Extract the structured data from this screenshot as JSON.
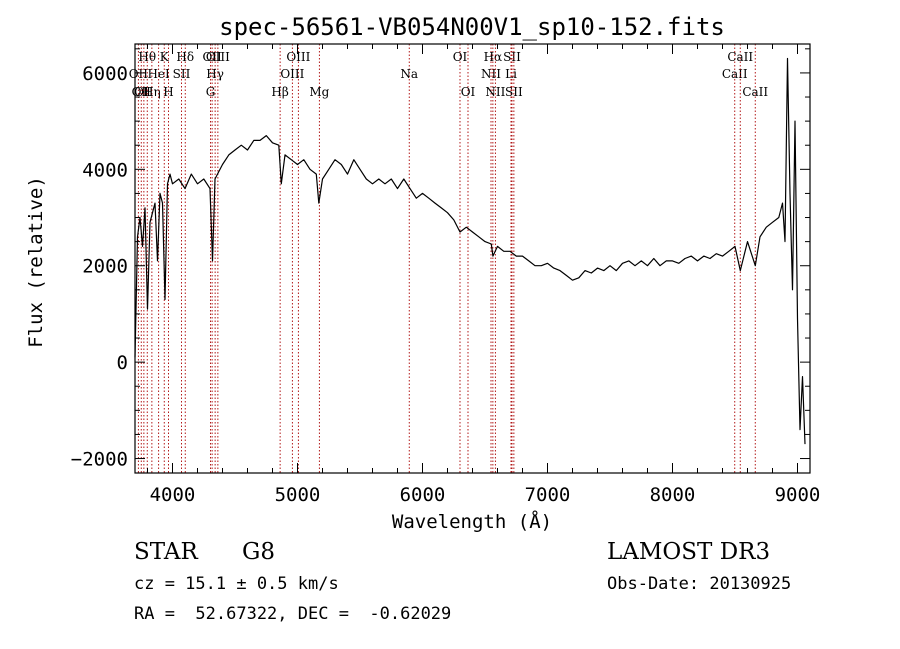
{
  "chart_data": {
    "type": "line",
    "title": "spec-56561-VB054N00V1_sp10-152.fits",
    "xlabel": "Wavelength (Å)",
    "ylabel": "Flux (relative)",
    "xlim": [
      3700,
      9100
    ],
    "ylim": [
      -2300,
      6600
    ],
    "x_ticks": [
      4000,
      5000,
      6000,
      7000,
      8000,
      9000
    ],
    "y_ticks": [
      -2000,
      0,
      2000,
      4000,
      6000
    ],
    "x_minor_step": 200,
    "y_minor_step": 500,
    "line_color": "#000000",
    "marker_color": "#aa0000",
    "series": [
      {
        "name": "flux",
        "x": [
          3700,
          3720,
          3740,
          3760,
          3780,
          3800,
          3820,
          3840,
          3860,
          3880,
          3900,
          3920,
          3940,
          3960,
          3980,
          4000,
          4050,
          4100,
          4150,
          4200,
          4250,
          4300,
          4320,
          4340,
          4360,
          4400,
          4450,
          4500,
          4550,
          4600,
          4650,
          4700,
          4750,
          4800,
          4850,
          4870,
          4900,
          4950,
          5000,
          5050,
          5100,
          5150,
          5170,
          5200,
          5250,
          5300,
          5350,
          5400,
          5450,
          5500,
          5550,
          5600,
          5650,
          5700,
          5750,
          5800,
          5850,
          5900,
          5950,
          6000,
          6050,
          6100,
          6150,
          6200,
          6250,
          6300,
          6350,
          6400,
          6450,
          6500,
          6550,
          6563,
          6600,
          6650,
          6700,
          6750,
          6800,
          6850,
          6900,
          6950,
          7000,
          7050,
          7100,
          7150,
          7200,
          7250,
          7300,
          7350,
          7400,
          7450,
          7500,
          7550,
          7600,
          7650,
          7700,
          7750,
          7800,
          7850,
          7900,
          7950,
          8000,
          8050,
          8100,
          8150,
          8200,
          8250,
          8300,
          8350,
          8400,
          8450,
          8500,
          8542,
          8600,
          8662,
          8700,
          8750,
          8800,
          8850,
          8880,
          8900,
          8920,
          8940,
          8960,
          8980,
          9000,
          9020,
          9040,
          9060
        ],
        "y": [
          100,
          2600,
          3000,
          2400,
          3200,
          1100,
          2900,
          3100,
          3300,
          2100,
          3500,
          3300,
          1300,
          3700,
          3900,
          3700,
          3800,
          3600,
          3900,
          3700,
          3800,
          3600,
          2100,
          3800,
          3900,
          4100,
          4300,
          4400,
          4500,
          4400,
          4600,
          4600,
          4700,
          4550,
          4500,
          3700,
          4300,
          4200,
          4100,
          4200,
          4000,
          3900,
          3300,
          3800,
          4000,
          4200,
          4100,
          3900,
          4200,
          4000,
          3800,
          3700,
          3800,
          3700,
          3800,
          3600,
          3800,
          3600,
          3400,
          3500,
          3400,
          3300,
          3200,
          3100,
          2950,
          2700,
          2800,
          2700,
          2600,
          2500,
          2450,
          2200,
          2400,
          2300,
          2300,
          2200,
          2200,
          2100,
          2000,
          2000,
          2050,
          1950,
          1900,
          1800,
          1700,
          1750,
          1900,
          1850,
          1950,
          1900,
          2000,
          1900,
          2050,
          2100,
          2000,
          2100,
          2000,
          2150,
          2000,
          2100,
          2100,
          2050,
          2150,
          2200,
          2100,
          2200,
          2150,
          2250,
          2200,
          2300,
          2400,
          1900,
          2500,
          2000,
          2600,
          2800,
          2900,
          3000,
          3300,
          2500,
          6300,
          3500,
          1500,
          5000,
          900,
          -1400,
          -300,
          -1700
        ]
      }
    ],
    "line_markers": [
      {
        "wavelength": 3727,
        "label": "OII",
        "row": 1
      },
      {
        "wavelength": 3750,
        "label": "OII",
        "row": 2
      },
      {
        "wavelength": 3771,
        "label": "OII",
        "row": 2
      },
      {
        "wavelength": 3798,
        "label": "Hθ",
        "row": 0
      },
      {
        "wavelength": 3835,
        "label": "Hη",
        "row": 2
      },
      {
        "wavelength": 3889,
        "label": "HeI",
        "row": 1
      },
      {
        "wavelength": 3934,
        "label": "K",
        "row": 0
      },
      {
        "wavelength": 3968,
        "label": "H",
        "row": 2
      },
      {
        "wavelength": 4072,
        "label": "SII",
        "row": 1
      },
      {
        "wavelength": 4102,
        "label": "Hδ",
        "row": 0
      },
      {
        "wavelength": 4304,
        "label": "G",
        "row": 2
      },
      {
        "wavelength": 4317,
        "label": "OII",
        "row": 0
      },
      {
        "wavelength": 4341,
        "label": "Hγ",
        "row": 1
      },
      {
        "wavelength": 4363,
        "label": "OIII",
        "row": 0
      },
      {
        "wavelength": 4861,
        "label": "Hβ",
        "row": 2
      },
      {
        "wavelength": 4959,
        "label": "OIII",
        "row": 1
      },
      {
        "wavelength": 5007,
        "label": "OIII",
        "row": 0
      },
      {
        "wavelength": 5175,
        "label": "Mg",
        "row": 2
      },
      {
        "wavelength": 5894,
        "label": "Na",
        "row": 1
      },
      {
        "wavelength": 6300,
        "label": "OI",
        "row": 0
      },
      {
        "wavelength": 6364,
        "label": "OI",
        "row": 2
      },
      {
        "wavelength": 6548,
        "label": "NII",
        "row": 1
      },
      {
        "wavelength": 6563,
        "label": "Hα",
        "row": 0
      },
      {
        "wavelength": 6583,
        "label": "NII",
        "row": 2
      },
      {
        "wavelength": 6708,
        "label": "Li",
        "row": 1
      },
      {
        "wavelength": 6716,
        "label": "SII",
        "row": 0
      },
      {
        "wavelength": 6731,
        "label": "SII",
        "row": 2
      },
      {
        "wavelength": 8498,
        "label": "CaII",
        "row": 1
      },
      {
        "wavelength": 8542,
        "label": "CaII",
        "row": 0
      },
      {
        "wavelength": 8662,
        "label": "CaII",
        "row": 2
      }
    ]
  },
  "footer": {
    "object_type": "STAR",
    "subclass": "G8",
    "survey": "LAMOST DR3",
    "redshift": "cz = 15.1 ± 0.5 km/s",
    "obs_date": "Obs-Date: 20130925",
    "coords": "RA =  52.67322, DEC =  -0.62029"
  }
}
